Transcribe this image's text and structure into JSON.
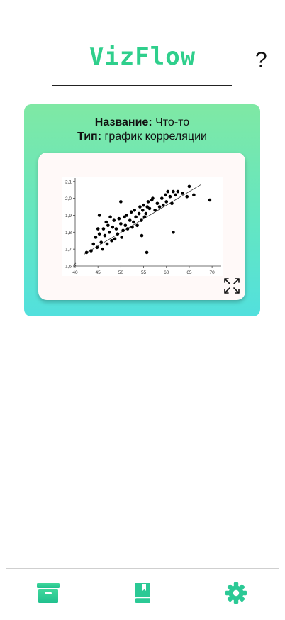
{
  "header": {
    "logo": "VizFlow",
    "help": "?"
  },
  "card": {
    "name_label": "Название:",
    "name_value": " Что-то",
    "type_label": "Тип:",
    "type_value": " график корреляции"
  },
  "chart_data": {
    "type": "scatter",
    "x_ticks": [
      "40",
      "45",
      "50",
      "55",
      "60",
      "65",
      "70"
    ],
    "y_ticks": [
      "1,6",
      "1,7",
      "1,8",
      "1,9",
      "2,0",
      "2,1"
    ],
    "xlim": [
      40,
      72
    ],
    "ylim": [
      1.6,
      2.12
    ],
    "x": [
      42.5,
      43.5,
      44,
      44.5,
      44.8,
      45,
      45.3,
      45.7,
      46,
      46.2,
      46.5,
      46.8,
      47,
      47.2,
      47.5,
      47.7,
      48,
      48.2,
      48.5,
      48.7,
      49,
      49.3,
      49.6,
      50,
      50.2,
      50.5,
      50.8,
      51,
      51.3,
      51.5,
      52,
      52.3,
      52.5,
      52.8,
      53,
      53.3,
      53.6,
      54,
      54.2,
      54.5,
      54.8,
      55,
      55.2,
      55.5,
      55.8,
      56,
      56.3,
      56.8,
      57,
      57.5,
      58,
      58.5,
      59,
      59.3,
      59.8,
      60,
      60.3,
      60.8,
      61.2,
      61.5,
      62,
      62.5,
      63.5,
      64.5,
      65,
      66,
      69.5,
      45.3,
      50,
      55.7,
      61.5,
      54.6
    ],
    "y": [
      1.68,
      1.69,
      1.73,
      1.77,
      1.71,
      1.82,
      1.79,
      1.74,
      1.7,
      1.82,
      1.78,
      1.86,
      1.73,
      1.84,
      1.8,
      1.89,
      1.75,
      1.83,
      1.87,
      1.76,
      1.82,
      1.79,
      1.88,
      1.85,
      1.77,
      1.81,
      1.89,
      1.84,
      1.9,
      1.82,
      1.87,
      1.92,
      1.83,
      1.86,
      1.93,
      1.89,
      1.84,
      1.91,
      1.95,
      1.87,
      1.93,
      1.96,
      1.89,
      1.91,
      1.95,
      1.98,
      1.94,
      1.99,
      2.0,
      1.93,
      1.97,
      1.95,
      2.0,
      1.96,
      2.02,
      1.98,
      2.04,
      2.01,
      1.97,
      2.04,
      2.02,
      2.04,
      2.03,
      2.01,
      2.07,
      2.02,
      1.99,
      1.9,
      1.98,
      1.68,
      1.8,
      1.78
    ],
    "trend": {
      "x": [
        42,
        67.5
      ],
      "y": [
        1.67,
        2.08
      ]
    }
  },
  "nav": {
    "archive": "archive-icon",
    "library": "book-icon",
    "settings": "gear-icon"
  },
  "colors": {
    "accent": "#2fcf8c",
    "card_top": "#7fe8a4",
    "card_bottom": "#52e0dd"
  }
}
